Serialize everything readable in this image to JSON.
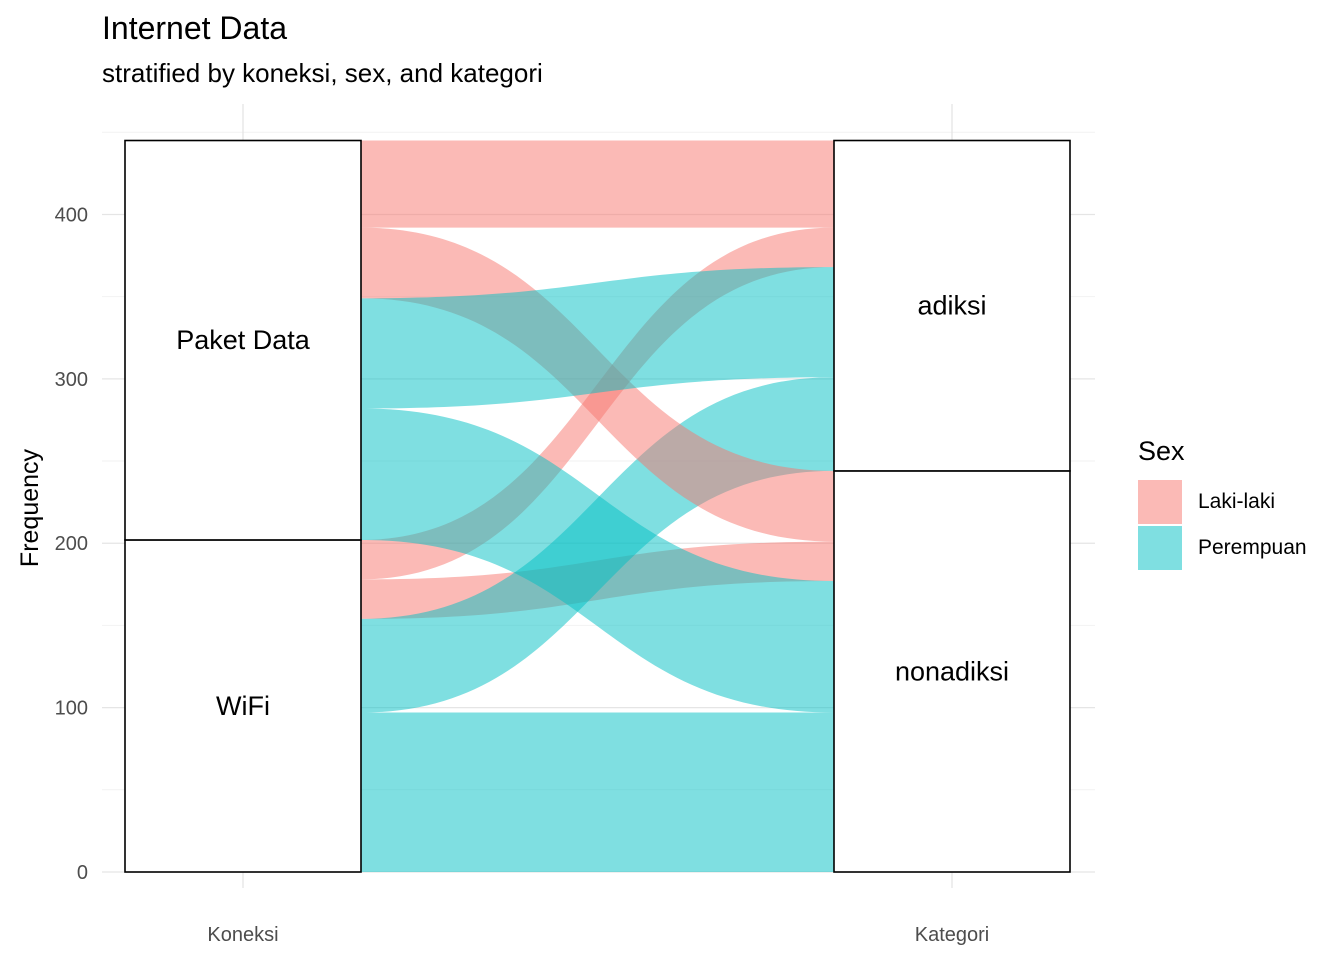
{
  "chart_data": {
    "type": "alluvial",
    "title": "Internet Data",
    "subtitle": "stratified by koneksi, sex, and kategori",
    "ylabel": "Frequency",
    "xlabel": "",
    "axes": [
      "Koneksi",
      "Kategori"
    ],
    "ylim": [
      0,
      445
    ],
    "yticks": [
      0,
      100,
      200,
      300,
      400
    ],
    "grid": true,
    "strata": {
      "Koneksi": [
        {
          "label": "WiFi",
          "value": 202
        },
        {
          "label": "Paket Data",
          "value": 243
        }
      ],
      "Kategori": [
        {
          "label": "nonadiksi",
          "value": 244
        },
        {
          "label": "adiksi",
          "value": 201
        }
      ]
    },
    "flows": [
      {
        "koneksi": "WiFi",
        "sex": "Perempuan",
        "kategori": "nonadiksi",
        "value": 97
      },
      {
        "koneksi": "WiFi",
        "sex": "Laki-laki",
        "kategori": "nonadiksi",
        "value": 24
      },
      {
        "koneksi": "WiFi",
        "sex": "Perempuan",
        "kategori": "adiksi",
        "value": 57
      },
      {
        "koneksi": "WiFi",
        "sex": "Laki-laki",
        "kategori": "adiksi",
        "value": 24
      },
      {
        "koneksi": "Paket Data",
        "sex": "Perempuan",
        "kategori": "nonadiksi",
        "value": 80
      },
      {
        "koneksi": "Paket Data",
        "sex": "Laki-laki",
        "kategori": "nonadiksi",
        "value": 43
      },
      {
        "koneksi": "Paket Data",
        "sex": "Perempuan",
        "kategori": "adiksi",
        "value": 67
      },
      {
        "koneksi": "Paket Data",
        "sex": "Laki-laki",
        "kategori": "adiksi",
        "value": 53
      }
    ],
    "legend": {
      "title": "Sex",
      "position": "right",
      "entries": [
        {
          "label": "Laki-laki",
          "color": "#F8766D"
        },
        {
          "label": "Perempuan",
          "color": "#00BFC4"
        }
      ]
    }
  }
}
